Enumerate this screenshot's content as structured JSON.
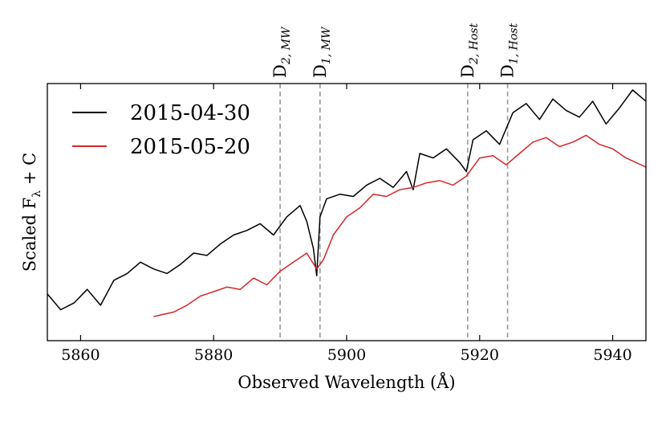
{
  "chart_data": {
    "type": "line",
    "xlabel": "Observed Wavelength (Å)",
    "ylabel": "Scaled F_λ + C",
    "ylabel_main": "Scaled F",
    "ylabel_sub": "λ",
    "ylabel_tail": " + C",
    "xlim": [
      5855,
      5945
    ],
    "ylim": [
      0,
      1
    ],
    "x_ticks": [
      5860,
      5880,
      5900,
      5920,
      5940
    ],
    "x_tick_labels": [
      "5860",
      "5880",
      "5900",
      "5920",
      "5940"
    ],
    "y_ticks_shown": false,
    "legend_position": "top-left",
    "series": [
      {
        "name": "2015-04-30",
        "color": "#000000",
        "x": [
          5855,
          5857,
          5859,
          5861,
          5863,
          5865,
          5867,
          5869,
          5871,
          5873,
          5875,
          5877,
          5879,
          5881,
          5883,
          5885,
          5887,
          5889,
          5891,
          5893,
          5894,
          5895,
          5895.5,
          5896,
          5897,
          5899,
          5901,
          5903,
          5905,
          5907,
          5909,
          5910,
          5911,
          5913,
          5915,
          5917,
          5918,
          5919,
          5921,
          5923,
          5925,
          5927,
          5929,
          5931,
          5933,
          5935,
          5937,
          5939,
          5941,
          5943,
          5945
        ],
        "y": [
          0.1,
          0.03,
          0.06,
          0.12,
          0.05,
          0.16,
          0.19,
          0.24,
          0.21,
          0.19,
          0.23,
          0.28,
          0.27,
          0.32,
          0.36,
          0.38,
          0.41,
          0.36,
          0.44,
          0.49,
          0.42,
          0.3,
          0.18,
          0.44,
          0.52,
          0.54,
          0.53,
          0.58,
          0.61,
          0.57,
          0.64,
          0.56,
          0.72,
          0.7,
          0.74,
          0.68,
          0.64,
          0.78,
          0.82,
          0.76,
          0.9,
          0.94,
          0.87,
          0.96,
          0.91,
          0.88,
          0.95,
          0.85,
          0.92,
          1.0,
          0.95
        ]
      },
      {
        "name": "2015-05-20",
        "color": "#d62728",
        "x": [
          5871,
          5874,
          5876,
          5878,
          5880,
          5882,
          5884,
          5886,
          5888,
          5890,
          5892,
          5894,
          5895.5,
          5896.5,
          5898,
          5900,
          5902,
          5904,
          5906,
          5908,
          5910,
          5912,
          5914,
          5916,
          5918,
          5920,
          5922,
          5924,
          5926,
          5928,
          5930,
          5932,
          5934,
          5936,
          5938,
          5940,
          5942,
          5945
        ],
        "y": [
          0.0,
          0.02,
          0.05,
          0.09,
          0.11,
          0.13,
          0.12,
          0.17,
          0.14,
          0.2,
          0.24,
          0.28,
          0.21,
          0.25,
          0.36,
          0.44,
          0.48,
          0.54,
          0.53,
          0.56,
          0.57,
          0.59,
          0.6,
          0.58,
          0.62,
          0.7,
          0.71,
          0.67,
          0.72,
          0.77,
          0.79,
          0.75,
          0.77,
          0.8,
          0.76,
          0.74,
          0.7,
          0.66
        ]
      }
    ],
    "absorption_lines": [
      {
        "label": "D",
        "sub": "2, MW",
        "x": 5890.0
      },
      {
        "label": "D",
        "sub": "1, MW",
        "x": 5896.0
      },
      {
        "label": "D",
        "sub": "2, Host",
        "x": 5918.2
      },
      {
        "label": "D",
        "sub": "1, Host",
        "x": 5924.2
      }
    ],
    "line_marker_color": "#999999"
  }
}
